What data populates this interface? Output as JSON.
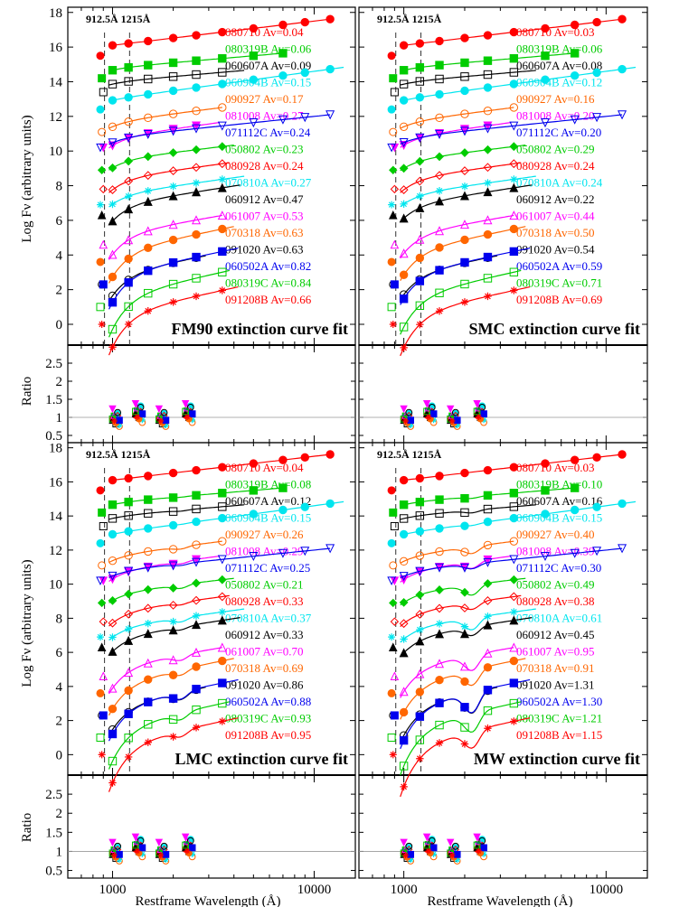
{
  "figure": {
    "xlabel": "Restframe Wavelength (Å)",
    "ylabel_top": "Log Fν (arbitrary units)",
    "ylabel_ratio": "Ratio",
    "guide_label": "912.5Å 1215Å",
    "guide_lines": [
      912.5,
      1215
    ]
  },
  "chart_data": [
    {
      "type": "scatter",
      "title": "FM90 extinction curve fit",
      "x_scale": "log",
      "xlim": [
        600,
        16000
      ],
      "ylim": [
        -1.2,
        18.3
      ],
      "x_ticks": [
        1000,
        10000
      ],
      "x_tick_labels": [
        "1000",
        "10000"
      ],
      "y_ticks": [
        0,
        2,
        4,
        6,
        8,
        10,
        12,
        14,
        16,
        18
      ],
      "ratio_ylim": [
        0.3,
        3.0
      ],
      "ratio_ticks": [
        0.5,
        1,
        1.5,
        2,
        2.5
      ],
      "series": [
        {
          "name": "080710",
          "av": "0.04",
          "label": "080710 Av=0.04",
          "color": "#ff0000"
        },
        {
          "name": "080319B",
          "av": "0.06",
          "label": "080319B Av=0.06",
          "color": "#00cc00"
        },
        {
          "name": "060607A",
          "av": "0.09",
          "label": "060607A Av=0.09",
          "color": "#000000"
        },
        {
          "name": "060904B",
          "av": "0.15",
          "label": "060904B Av=0.15",
          "color": "#00e5ee"
        },
        {
          "name": "090927",
          "av": "0.17",
          "label": "090927 Av=0.17",
          "color": "#ff6600"
        },
        {
          "name": "081008",
          "av": "0.27",
          "label": "081008 Av=0.27",
          "color": "#ff00ff"
        },
        {
          "name": "071112C",
          "av": "0.24",
          "label": "071112C Av=0.24",
          "color": "#0000ee"
        },
        {
          "name": "050802",
          "av": "0.23",
          "label": "050802 Av=0.23",
          "color": "#00cc00"
        },
        {
          "name": "080928",
          "av": "0.24",
          "label": "080928 Av=0.24",
          "color": "#ff0000"
        },
        {
          "name": "070810A",
          "av": "0.27",
          "label": "070810A Av=0.27",
          "color": "#00e5ee"
        },
        {
          "name": "060912",
          "av": "0.47",
          "label": "060912 Av=0.47",
          "color": "#000000"
        },
        {
          "name": "061007",
          "av": "0.53",
          "label": "061007 Av=0.53",
          "color": "#ff00ff"
        },
        {
          "name": "070318",
          "av": "0.63",
          "label": "070318 Av=0.63",
          "color": "#ff6600"
        },
        {
          "name": "091020",
          "av": "0.63",
          "label": "091020 Av=0.63",
          "color": "#000000"
        },
        {
          "name": "060502A",
          "av": "0.82",
          "label": "060502A Av=0.82",
          "color": "#0000ee"
        },
        {
          "name": "080319C",
          "av": "0.84",
          "label": "080319C Av=0.84",
          "color": "#00cc00"
        },
        {
          "name": "091208B",
          "av": "0.66",
          "label": "091208B Av=0.66",
          "color": "#ff0000"
        }
      ]
    },
    {
      "type": "scatter",
      "title": "SMC extinction curve fit",
      "x_scale": "log",
      "xlim": [
        600,
        16000
      ],
      "ylim": [
        -1.2,
        18.3
      ],
      "x_ticks": [
        1000,
        10000
      ],
      "x_tick_labels": [
        "1000",
        "10000"
      ],
      "y_ticks": [
        0,
        2,
        4,
        6,
        8,
        10,
        12,
        14,
        16,
        18
      ],
      "ratio_ylim": [
        0.3,
        3.0
      ],
      "ratio_ticks": [
        0.5,
        1,
        1.5,
        2,
        2.5
      ],
      "series": [
        {
          "name": "080710",
          "av": "0.03",
          "label": "080710 Av=0.03",
          "color": "#ff0000"
        },
        {
          "name": "080319B",
          "av": "0.06",
          "label": "080319B Av=0.06",
          "color": "#00cc00"
        },
        {
          "name": "060607A",
          "av": "0.08",
          "label": "060607A Av=0.08",
          "color": "#000000"
        },
        {
          "name": "060904B",
          "av": "0.12",
          "label": "060904B Av=0.12",
          "color": "#00e5ee"
        },
        {
          "name": "090927",
          "av": "0.16",
          "label": "090927 Av=0.16",
          "color": "#ff6600"
        },
        {
          "name": "081008",
          "av": "0.20",
          "label": "081008 Av=0.20",
          "color": "#ff00ff"
        },
        {
          "name": "071112C",
          "av": "0.20",
          "label": "071112C Av=0.20",
          "color": "#0000ee"
        },
        {
          "name": "050802",
          "av": "0.29",
          "label": "050802 Av=0.29",
          "color": "#00cc00"
        },
        {
          "name": "080928",
          "av": "0.24",
          "label": "080928 Av=0.24",
          "color": "#ff0000"
        },
        {
          "name": "070810A",
          "av": "0.24",
          "label": "070810A Av=0.24",
          "color": "#00e5ee"
        },
        {
          "name": "060912",
          "av": "0.22",
          "label": "060912 Av=0.22",
          "color": "#000000"
        },
        {
          "name": "061007",
          "av": "0.44",
          "label": "061007 Av=0.44",
          "color": "#ff00ff"
        },
        {
          "name": "070318",
          "av": "0.50",
          "label": "070318 Av=0.50",
          "color": "#ff6600"
        },
        {
          "name": "091020",
          "av": "0.54",
          "label": "091020 Av=0.54",
          "color": "#000000"
        },
        {
          "name": "060502A",
          "av": "0.59",
          "label": "060502A Av=0.59",
          "color": "#0000ee"
        },
        {
          "name": "080319C",
          "av": "0.71",
          "label": "080319C Av=0.71",
          "color": "#00cc00"
        },
        {
          "name": "091208B",
          "av": "0.69",
          "label": "091208B Av=0.69",
          "color": "#ff0000"
        }
      ]
    },
    {
      "type": "scatter",
      "title": "LMC extinction curve fit",
      "x_scale": "log",
      "xlim": [
        600,
        16000
      ],
      "ylim": [
        -1.2,
        18.3
      ],
      "x_ticks": [
        1000,
        10000
      ],
      "x_tick_labels": [
        "1000",
        "10000"
      ],
      "y_ticks": [
        0,
        2,
        4,
        6,
        8,
        10,
        12,
        14,
        16,
        18
      ],
      "ratio_ylim": [
        0.3,
        3.0
      ],
      "ratio_ticks": [
        0.5,
        1,
        1.5,
        2,
        2.5
      ],
      "series": [
        {
          "name": "080710",
          "av": "0.04",
          "label": "080710 Av=0.04",
          "color": "#ff0000"
        },
        {
          "name": "080319B",
          "av": "0.08",
          "label": "080319B Av=0.08",
          "color": "#00cc00"
        },
        {
          "name": "060607A",
          "av": "0.12",
          "label": "060607A Av=0.12",
          "color": "#000000"
        },
        {
          "name": "060904B",
          "av": "0.15",
          "label": "060904B Av=0.15",
          "color": "#00e5ee"
        },
        {
          "name": "090927",
          "av": "0.26",
          "label": "090927 Av=0.26",
          "color": "#ff6600"
        },
        {
          "name": "081008",
          "av": "0.29",
          "label": "081008 Av=0.29",
          "color": "#ff00ff"
        },
        {
          "name": "071112C",
          "av": "0.25",
          "label": "071112C Av=0.25",
          "color": "#0000ee"
        },
        {
          "name": "050802",
          "av": "0.21",
          "label": "050802 Av=0.21",
          "color": "#00cc00"
        },
        {
          "name": "080928",
          "av": "0.33",
          "label": "080928 Av=0.33",
          "color": "#ff0000"
        },
        {
          "name": "070810A",
          "av": "0.37",
          "label": "070810A Av=0.37",
          "color": "#00e5ee"
        },
        {
          "name": "060912",
          "av": "0.33",
          "label": "060912 Av=0.33",
          "color": "#000000"
        },
        {
          "name": "061007",
          "av": "0.70",
          "label": "061007 Av=0.70",
          "color": "#ff00ff"
        },
        {
          "name": "070318",
          "av": "0.69",
          "label": "070318 Av=0.69",
          "color": "#ff6600"
        },
        {
          "name": "091020",
          "av": "0.86",
          "label": "091020 Av=0.86",
          "color": "#000000"
        },
        {
          "name": "060502A",
          "av": "0.88",
          "label": "060502A Av=0.88",
          "color": "#0000ee"
        },
        {
          "name": "080319C",
          "av": "0.93",
          "label": "080319C Av=0.93",
          "color": "#00cc00"
        },
        {
          "name": "091208B",
          "av": "0.95",
          "label": "091208B Av=0.95",
          "color": "#ff0000"
        }
      ]
    },
    {
      "type": "scatter",
      "title": "MW extinction curve fit",
      "x_scale": "log",
      "xlim": [
        600,
        16000
      ],
      "ylim": [
        -1.2,
        18.3
      ],
      "x_ticks": [
        1000,
        10000
      ],
      "x_tick_labels": [
        "1000",
        "10000"
      ],
      "y_ticks": [
        0,
        2,
        4,
        6,
        8,
        10,
        12,
        14,
        16,
        18
      ],
      "ratio_ylim": [
        0.3,
        3.0
      ],
      "ratio_ticks": [
        0.5,
        1,
        1.5,
        2,
        2.5
      ],
      "series": [
        {
          "name": "080710",
          "av": "0.03",
          "label": "080710 Av=0.03",
          "color": "#ff0000"
        },
        {
          "name": "080319B",
          "av": "0.10",
          "label": "080319B Av=0.10",
          "color": "#00cc00"
        },
        {
          "name": "060607A",
          "av": "0.16",
          "label": "060607A Av=0.16",
          "color": "#000000"
        },
        {
          "name": "060904B",
          "av": "0.15",
          "label": "060904B Av=0.15",
          "color": "#00e5ee"
        },
        {
          "name": "090927",
          "av": "0.40",
          "label": "090927 Av=0.40",
          "color": "#ff6600"
        },
        {
          "name": "081008",
          "av": "0.39",
          "label": "081008 Av=0.39",
          "color": "#ff00ff"
        },
        {
          "name": "071112C",
          "av": "0.30",
          "label": "071112C Av=0.30",
          "color": "#0000ee"
        },
        {
          "name": "050802",
          "av": "0.49",
          "label": "050802 Av=0.49",
          "color": "#00cc00"
        },
        {
          "name": "080928",
          "av": "0.38",
          "label": "080928 Av=0.38",
          "color": "#ff0000"
        },
        {
          "name": "070810A",
          "av": "0.61",
          "label": "070810A Av=0.61",
          "color": "#00e5ee"
        },
        {
          "name": "060912",
          "av": "0.45",
          "label": "060912 Av=0.45",
          "color": "#000000"
        },
        {
          "name": "061007",
          "av": "0.95",
          "label": "061007 Av=0.95",
          "color": "#ff00ff"
        },
        {
          "name": "070318",
          "av": "0.91",
          "label": "070318 Av=0.91",
          "color": "#ff6600"
        },
        {
          "name": "091020",
          "av": "1.31",
          "label": "091020 Av=1.31",
          "color": "#000000"
        },
        {
          "name": "060502A",
          "av": "1.30",
          "label": "060502A Av=1.30",
          "color": "#0000ee"
        },
        {
          "name": "080319C",
          "av": "1.21",
          "label": "080319C Av=1.21",
          "color": "#00cc00"
        },
        {
          "name": "091208B",
          "av": "1.15",
          "label": "091208B Av=1.15",
          "color": "#ff0000"
        }
      ]
    }
  ],
  "spectra": {
    "offsets": [
      16.1,
      14.8,
      14.0,
      13.0,
      11.7,
      10.8,
      10.8,
      9.5,
      8.4,
      7.5,
      6.9,
      5.2,
      4.2,
      2.9,
      2.9,
      1.6,
      0.6
    ],
    "slopes": [
      1.4,
      1.0,
      1.0,
      1.6,
      1.5,
      1.6,
      1.2,
      1.4,
      1.6,
      1.6,
      1.8,
      2.0,
      2.4,
      2.3,
      2.4,
      2.6,
      2.5
    ],
    "start_wavelength": [
      912,
      912,
      912,
      912,
      912,
      912,
      912,
      912,
      912,
      912,
      912,
      912,
      912,
      912,
      912,
      912,
      912
    ],
    "end_wavelength": [
      12000,
      7000,
      4500,
      14000,
      3500,
      3400,
      12000,
      4000,
      3800,
      4500,
      4300,
      3500,
      4000,
      2900,
      4200,
      3800,
      4200
    ],
    "marker": [
      "circle-filled",
      "square-filled",
      "square-open",
      "circle-filled",
      "circle-open",
      "triangle-down-filled",
      "triangle-down-open",
      "diamond-filled",
      "diamond-open",
      "star",
      "triangle-filled",
      "triangle-open",
      "circle-filled",
      "circle-open",
      "square-filled",
      "square-open",
      "star"
    ],
    "point_wavelength": [
      1000,
      1200,
      1500,
      2000,
      2600,
      3500,
      5000,
      7000,
      9000,
      12000
    ],
    "blue_drop": [
      0,
      0.2,
      0.2,
      0.1,
      0.4,
      0.6,
      0.4,
      0.6,
      0.8,
      0.7,
      1.0,
      1.2,
      1.4,
      1.2,
      1.4,
      1.6,
      1.8
    ],
    "bump_amplitude": [
      0,
      0.1,
      0.15,
      0.1,
      0.4,
      0.4,
      0.3,
      0.6,
      0.4,
      0.7,
      0.5,
      0.9,
      0.9,
      1.2,
      1.2,
      1.1,
      1.0
    ],
    "ratio_points": [
      1.0,
      1.1,
      0.9,
      1.2,
      0.8,
      1.3,
      1.05,
      0.95,
      1.1,
      0.85,
      1.0,
      1.15,
      0.9,
      1.2,
      1.0,
      1.05,
      0.95
    ]
  }
}
